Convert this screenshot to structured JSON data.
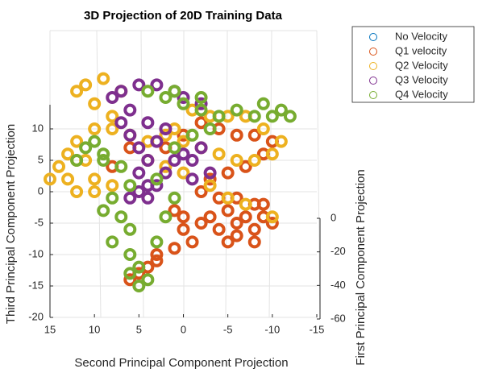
{
  "chart_data": {
    "type": "scatter3d",
    "title": "3D Projection of 20D Training Data",
    "xlabel": "Second Principal Component Projection",
    "ylabel": "Third Principal Component Projection",
    "zlabel": "First Principal Component Projection",
    "xlim": [
      15,
      -15
    ],
    "xticks": [
      15,
      10,
      5,
      0,
      -5,
      -10,
      -15
    ],
    "ylim": [
      -20,
      20
    ],
    "yticks": [
      -20,
      -15,
      -10,
      -5,
      0,
      5,
      10
    ],
    "zlim": [
      -60,
      0
    ],
    "zticks": [
      0,
      -20,
      -40,
      -60
    ],
    "grid": true,
    "legend": "outside-top-right",
    "series": [
      {
        "name": "No Velocity",
        "color": "#0072BD",
        "points": []
      },
      {
        "name": "Q1 velocity",
        "color": "#D95319",
        "points": [
          [
            -2,
            11
          ],
          [
            -4,
            10
          ],
          [
            -6,
            9
          ],
          [
            -8,
            9
          ],
          [
            -10,
            8
          ],
          [
            -9,
            6
          ],
          [
            -7,
            4
          ],
          [
            -5,
            3
          ],
          [
            -3,
            2
          ],
          [
            -2,
            0
          ],
          [
            -4,
            -1
          ],
          [
            -6,
            -1
          ],
          [
            -8,
            -2
          ],
          [
            -9,
            -4
          ],
          [
            -8,
            -6
          ],
          [
            -6,
            -7
          ],
          [
            -4,
            -6
          ],
          [
            -3,
            -4
          ],
          [
            -5,
            -3
          ],
          [
            -7,
            -4
          ],
          [
            -6,
            -5
          ],
          [
            -2,
            -5
          ],
          [
            0,
            -4
          ],
          [
            1,
            -3
          ],
          [
            0,
            -6
          ],
          [
            -1,
            -8
          ],
          [
            1,
            -9
          ],
          [
            3,
            -10
          ],
          [
            4,
            -12
          ],
          [
            5,
            -13
          ],
          [
            6,
            -14
          ],
          [
            3,
            -11
          ],
          [
            4,
            5
          ],
          [
            6,
            7
          ],
          [
            8,
            4
          ],
          [
            2,
            7
          ],
          [
            0,
            9
          ],
          [
            -9,
            -2
          ],
          [
            -10,
            -5
          ],
          [
            -8,
            -8
          ],
          [
            -5,
            -8
          ]
        ]
      },
      {
        "name": "Q2 Velocity",
        "color": "#EDB120",
        "points": [
          [
            15,
            2
          ],
          [
            14,
            4
          ],
          [
            13,
            6
          ],
          [
            12,
            5
          ],
          [
            13,
            2
          ],
          [
            12,
            0
          ],
          [
            10,
            0
          ],
          [
            8,
            1
          ],
          [
            10,
            2
          ],
          [
            11,
            5
          ],
          [
            12,
            8
          ],
          [
            10,
            10
          ],
          [
            8,
            12
          ],
          [
            10,
            14
          ],
          [
            12,
            16
          ],
          [
            11,
            17
          ],
          [
            9,
            18
          ],
          [
            7,
            16
          ],
          [
            8,
            10
          ],
          [
            6,
            9
          ],
          [
            4,
            8
          ],
          [
            2,
            9
          ],
          [
            0,
            8
          ],
          [
            -2,
            7
          ],
          [
            -4,
            6
          ],
          [
            -6,
            5
          ],
          [
            -8,
            5
          ],
          [
            -10,
            6
          ],
          [
            -11,
            8
          ],
          [
            -9,
            10
          ],
          [
            -7,
            12
          ],
          [
            -5,
            12
          ],
          [
            -3,
            12
          ],
          [
            -1,
            13
          ],
          [
            1,
            10
          ],
          [
            2,
            4
          ],
          [
            0,
            3
          ],
          [
            -3,
            1
          ],
          [
            -5,
            -1
          ],
          [
            -7,
            -2
          ],
          [
            -10,
            -4
          ]
        ]
      },
      {
        "name": "Q3 Velocity",
        "color": "#7E2F8E",
        "points": [
          [
            8,
            15
          ],
          [
            7,
            16
          ],
          [
            5,
            17
          ],
          [
            3,
            17
          ],
          [
            1,
            16
          ],
          [
            0,
            15
          ],
          [
            -2,
            14
          ],
          [
            6,
            13
          ],
          [
            7,
            11
          ],
          [
            6,
            9
          ],
          [
            5,
            7
          ],
          [
            4,
            5
          ],
          [
            5,
            3
          ],
          [
            4,
            1
          ],
          [
            5,
            0
          ],
          [
            6,
            -1
          ],
          [
            4,
            -1
          ],
          [
            3,
            1
          ],
          [
            2,
            3
          ],
          [
            1,
            5
          ],
          [
            0,
            6
          ],
          [
            -1,
            5
          ],
          [
            -2,
            7
          ],
          [
            3,
            8
          ],
          [
            2,
            10
          ],
          [
            4,
            11
          ],
          [
            -1,
            2
          ],
          [
            -3,
            3
          ]
        ]
      },
      {
        "name": "Q4 Velocity",
        "color": "#77AC30",
        "points": [
          [
            4,
            16
          ],
          [
            2,
            15
          ],
          [
            0,
            14
          ],
          [
            -2,
            13
          ],
          [
            -4,
            12
          ],
          [
            -6,
            13
          ],
          [
            -8,
            12
          ],
          [
            -10,
            12
          ],
          [
            -12,
            12
          ],
          [
            -11,
            13
          ],
          [
            -9,
            14
          ],
          [
            10,
            8
          ],
          [
            9,
            6
          ],
          [
            12,
            5
          ],
          [
            11,
            7
          ],
          [
            9,
            5
          ],
          [
            7,
            4
          ],
          [
            6,
            1
          ],
          [
            8,
            -1
          ],
          [
            9,
            -3
          ],
          [
            7,
            -4
          ],
          [
            6,
            -6
          ],
          [
            8,
            -8
          ],
          [
            6,
            -10
          ],
          [
            5,
            -12
          ],
          [
            6,
            -13
          ],
          [
            4,
            -14
          ],
          [
            5,
            -15
          ],
          [
            3,
            -8
          ],
          [
            2,
            -4
          ],
          [
            1,
            -1
          ],
          [
            3,
            2
          ],
          [
            1,
            7
          ],
          [
            -1,
            9
          ],
          [
            -3,
            10
          ],
          [
            -2,
            15
          ],
          [
            1,
            16
          ]
        ]
      }
    ]
  }
}
